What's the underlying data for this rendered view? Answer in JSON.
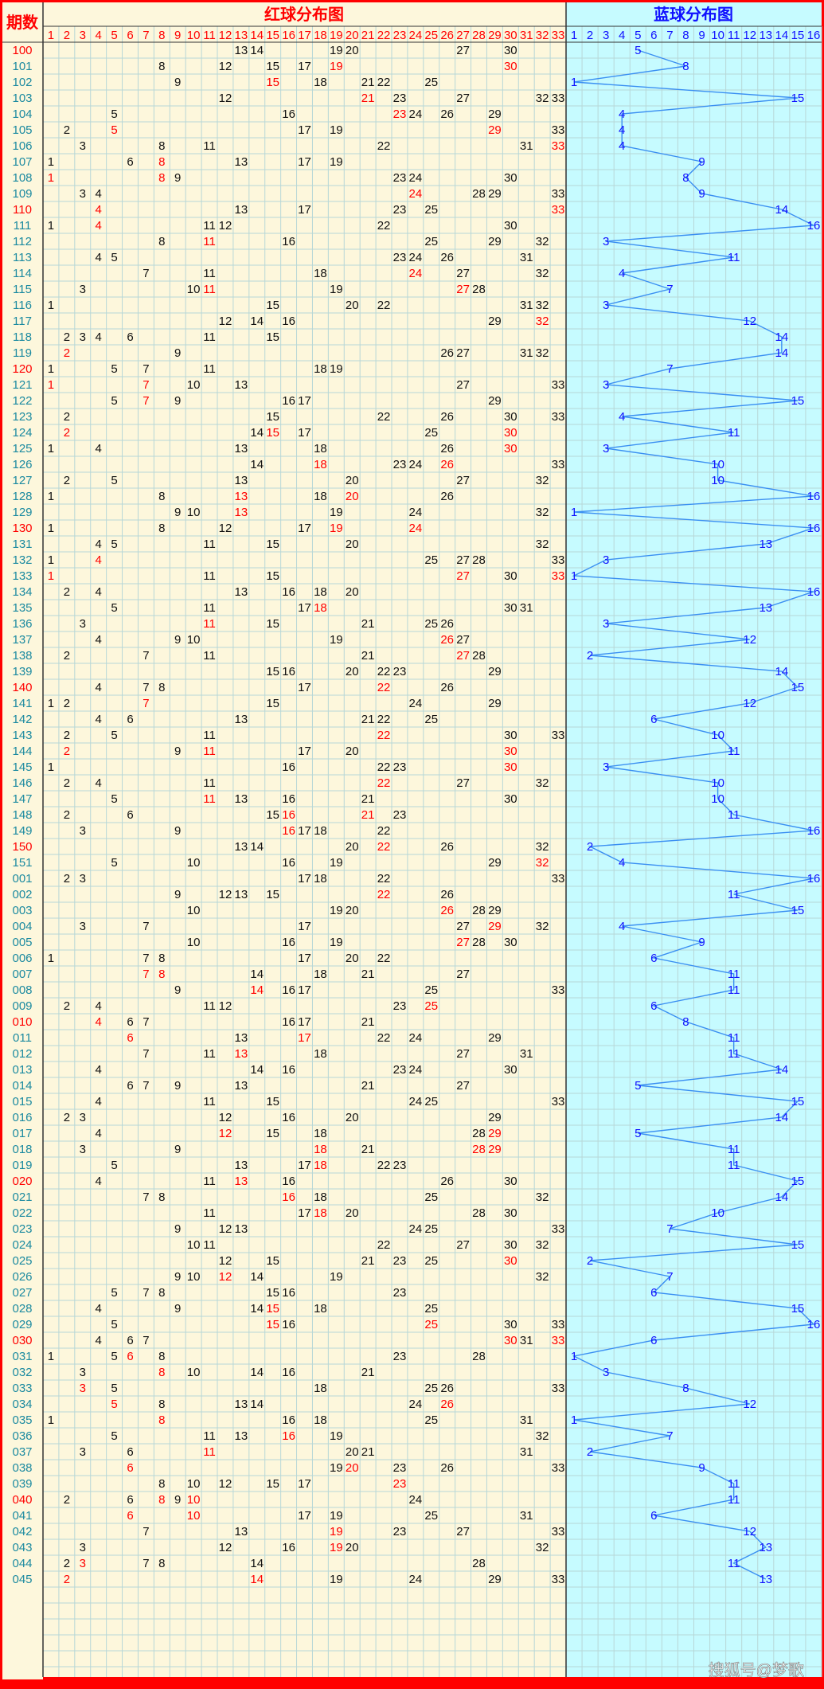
{
  "chart_data": {
    "type": "table",
    "header": {
      "period_label": "期数",
      "red_title": "红球分布图",
      "blue_title": "蓝球分布图"
    },
    "red_columns": [
      1,
      2,
      3,
      4,
      5,
      6,
      7,
      8,
      9,
      10,
      11,
      12,
      13,
      14,
      15,
      16,
      17,
      18,
      19,
      20,
      21,
      22,
      23,
      24,
      25,
      26,
      27,
      28,
      29,
      30,
      31,
      32,
      33
    ],
    "blue_columns": [
      1,
      2,
      3,
      4,
      5,
      6,
      7,
      8,
      9,
      10,
      11,
      12,
      13,
      14,
      15,
      16
    ],
    "draws": [
      {
        "period": "100",
        "red": [
          13,
          14,
          19,
          20,
          27,
          30
        ],
        "blue": 5
      },
      {
        "period": "101",
        "red": [
          8,
          12,
          15,
          17,
          19,
          30
        ],
        "blue": 8
      },
      {
        "period": "102",
        "red": [
          9,
          15,
          18,
          21,
          22,
          25
        ],
        "blue": 1
      },
      {
        "period": "103",
        "red": [
          12,
          21,
          23,
          27,
          32,
          33
        ],
        "blue": 15
      },
      {
        "period": "104",
        "red": [
          5,
          16,
          23,
          24,
          26,
          29
        ],
        "blue": 4
      },
      {
        "period": "105",
        "red": [
          2,
          5,
          17,
          19,
          29,
          33
        ],
        "blue": 4
      },
      {
        "period": "106",
        "red": [
          3,
          8,
          11,
          22,
          31,
          33
        ],
        "blue": 4
      },
      {
        "period": "107",
        "red": [
          1,
          6,
          8,
          13,
          17,
          19
        ],
        "blue": 9
      },
      {
        "period": "108",
        "red": [
          1,
          8,
          9,
          23,
          24,
          30
        ],
        "blue": 8
      },
      {
        "period": "109",
        "red": [
          3,
          4,
          24,
          28,
          29,
          33
        ],
        "blue": 9
      },
      {
        "period": "110",
        "red": [
          4,
          13,
          17,
          23,
          25,
          33
        ],
        "blue": 14
      },
      {
        "period": "111",
        "red": [
          1,
          4,
          11,
          12,
          22,
          30
        ],
        "blue": 16
      },
      {
        "period": "112",
        "red": [
          8,
          11,
          16,
          25,
          29,
          32
        ],
        "blue": 3
      },
      {
        "period": "113",
        "red": [
          4,
          5,
          23,
          24,
          26,
          31
        ],
        "blue": 11
      },
      {
        "period": "114",
        "red": [
          7,
          11,
          18,
          24,
          27,
          32
        ],
        "blue": 4
      },
      {
        "period": "115",
        "red": [
          3,
          10,
          11,
          19,
          27,
          28
        ],
        "blue": 7
      },
      {
        "period": "116",
        "red": [
          1,
          15,
          20,
          22,
          31,
          32
        ],
        "blue": 3
      },
      {
        "period": "117",
        "red": [
          12,
          14,
          16,
          29,
          32
        ],
        "blue": 12
      },
      {
        "period": "118",
        "red": [
          2,
          3,
          4,
          6,
          11,
          15
        ],
        "blue": 14
      },
      {
        "period": "119",
        "red": [
          2,
          9,
          26,
          27,
          31,
          32
        ],
        "blue": 14
      },
      {
        "period": "120",
        "red": [
          1,
          5,
          7,
          11,
          18,
          19
        ],
        "blue": 7
      },
      {
        "period": "121",
        "red": [
          1,
          7,
          10,
          13,
          27,
          33
        ],
        "blue": 3
      },
      {
        "period": "122",
        "red": [
          5,
          7,
          9,
          16,
          17,
          29
        ],
        "blue": 15
      },
      {
        "period": "123",
        "red": [
          2,
          15,
          22,
          26,
          30,
          33
        ],
        "blue": 4
      },
      {
        "period": "124",
        "red": [
          2,
          14,
          15,
          17,
          25,
          30
        ],
        "blue": 11
      },
      {
        "period": "125",
        "red": [
          1,
          4,
          13,
          18,
          26,
          30
        ],
        "blue": 3
      },
      {
        "period": "126",
        "red": [
          14,
          18,
          23,
          24,
          26,
          33
        ],
        "blue": 10
      },
      {
        "period": "127",
        "red": [
          2,
          5,
          13,
          20,
          27,
          32
        ],
        "blue": 10
      },
      {
        "period": "128",
        "red": [
          1,
          8,
          13,
          18,
          20,
          26
        ],
        "blue": 16
      },
      {
        "period": "129",
        "red": [
          9,
          10,
          13,
          19,
          24,
          32
        ],
        "blue": 1
      },
      {
        "period": "130",
        "red": [
          1,
          8,
          12,
          17,
          19,
          24
        ],
        "blue": 16
      },
      {
        "period": "131",
        "red": [
          4,
          5,
          11,
          15,
          20,
          32
        ],
        "blue": 13
      },
      {
        "period": "132",
        "red": [
          1,
          4,
          25,
          27,
          28,
          33
        ],
        "blue": 3
      },
      {
        "period": "133",
        "red": [
          1,
          11,
          15,
          27,
          30,
          33
        ],
        "blue": 1
      },
      {
        "period": "134",
        "red": [
          2,
          4,
          13,
          16,
          18,
          20
        ],
        "blue": 16
      },
      {
        "period": "135",
        "red": [
          5,
          11,
          17,
          18,
          30,
          31
        ],
        "blue": 13
      },
      {
        "period": "136",
        "red": [
          3,
          11,
          15,
          21,
          25,
          26
        ],
        "blue": 3
      },
      {
        "period": "137",
        "red": [
          4,
          9,
          10,
          19,
          26,
          27
        ],
        "blue": 12
      },
      {
        "period": "138",
        "red": [
          2,
          7,
          11,
          21,
          27,
          28
        ],
        "blue": 2
      },
      {
        "period": "139",
        "red": [
          15,
          16,
          20,
          22,
          23,
          29
        ],
        "blue": 14
      },
      {
        "period": "140",
        "red": [
          4,
          7,
          8,
          17,
          22,
          26
        ],
        "blue": 15
      },
      {
        "period": "141",
        "red": [
          1,
          2,
          7,
          15,
          24,
          29
        ],
        "blue": 12
      },
      {
        "period": "142",
        "red": [
          4,
          6,
          13,
          21,
          22,
          25
        ],
        "blue": 6
      },
      {
        "period": "143",
        "red": [
          2,
          5,
          11,
          22,
          30,
          33
        ],
        "blue": 10
      },
      {
        "period": "144",
        "red": [
          2,
          9,
          11,
          17,
          20,
          30
        ],
        "blue": 11
      },
      {
        "period": "145",
        "red": [
          1,
          16,
          22,
          23,
          30
        ],
        "blue": 3
      },
      {
        "period": "146",
        "red": [
          2,
          4,
          11,
          22,
          27,
          32
        ],
        "blue": 10
      },
      {
        "period": "147",
        "red": [
          5,
          11,
          13,
          16,
          21,
          30
        ],
        "blue": 10
      },
      {
        "period": "148",
        "red": [
          2,
          6,
          15,
          16,
          21,
          23
        ],
        "blue": 11
      },
      {
        "period": "149",
        "red": [
          3,
          9,
          16,
          17,
          18,
          22
        ],
        "blue": 16
      },
      {
        "period": "150",
        "red": [
          13,
          14,
          20,
          22,
          26,
          32
        ],
        "blue": 2
      },
      {
        "period": "151",
        "red": [
          5,
          10,
          16,
          19,
          29,
          32
        ],
        "blue": 4
      },
      {
        "period": "001",
        "red": [
          2,
          3,
          17,
          18,
          22,
          33
        ],
        "blue": 16
      },
      {
        "period": "002",
        "red": [
          9,
          12,
          13,
          15,
          22,
          26
        ],
        "blue": 11
      },
      {
        "period": "003",
        "red": [
          10,
          19,
          20,
          26,
          28,
          29
        ],
        "blue": 15
      },
      {
        "period": "004",
        "red": [
          3,
          7,
          17,
          27,
          29,
          32
        ],
        "blue": 4
      },
      {
        "period": "005",
        "red": [
          10,
          16,
          19,
          27,
          28,
          30
        ],
        "blue": 9
      },
      {
        "period": "006",
        "red": [
          1,
          7,
          8,
          17,
          20,
          22
        ],
        "blue": 6
      },
      {
        "period": "007",
        "red": [
          7,
          8,
          14,
          18,
          21,
          27
        ],
        "blue": 11
      },
      {
        "period": "008",
        "red": [
          9,
          14,
          16,
          17,
          25,
          33
        ],
        "blue": 11
      },
      {
        "period": "009",
        "red": [
          2,
          4,
          11,
          12,
          23,
          25
        ],
        "blue": 6
      },
      {
        "period": "010",
        "red": [
          4,
          6,
          7,
          16,
          17,
          21
        ],
        "blue": 8
      },
      {
        "period": "011",
        "red": [
          6,
          13,
          17,
          22,
          24,
          29
        ],
        "blue": 11
      },
      {
        "period": "012",
        "red": [
          7,
          11,
          13,
          18,
          27,
          31
        ],
        "blue": 11
      },
      {
        "period": "013",
        "red": [
          4,
          14,
          16,
          23,
          24,
          30
        ],
        "blue": 14
      },
      {
        "period": "014",
        "red": [
          6,
          7,
          9,
          13,
          21,
          27
        ],
        "blue": 5
      },
      {
        "period": "015",
        "red": [
          4,
          11,
          15,
          24,
          25,
          33
        ],
        "blue": 15
      },
      {
        "period": "016",
        "red": [
          2,
          3,
          12,
          16,
          20,
          29
        ],
        "blue": 14
      },
      {
        "period": "017",
        "red": [
          4,
          12,
          15,
          18,
          28,
          29
        ],
        "blue": 5
      },
      {
        "period": "018",
        "red": [
          3,
          9,
          18,
          21,
          28,
          29
        ],
        "blue": 11
      },
      {
        "period": "019",
        "red": [
          5,
          13,
          17,
          18,
          22,
          23
        ],
        "blue": 11
      },
      {
        "period": "020",
        "red": [
          4,
          11,
          13,
          16,
          26,
          30
        ],
        "blue": 15
      },
      {
        "period": "021",
        "red": [
          7,
          8,
          16,
          18,
          25,
          32
        ],
        "blue": 14
      },
      {
        "period": "022",
        "red": [
          11,
          17,
          18,
          20,
          28,
          30
        ],
        "blue": 10
      },
      {
        "period": "023",
        "red": [
          9,
          12,
          13,
          24,
          25,
          33
        ],
        "blue": 7
      },
      {
        "period": "024",
        "red": [
          10,
          11,
          22,
          27,
          30,
          32
        ],
        "blue": 15
      },
      {
        "period": "025",
        "red": [
          12,
          15,
          21,
          23,
          25,
          30
        ],
        "blue": 2
      },
      {
        "period": "026",
        "red": [
          9,
          10,
          12,
          14,
          19,
          32
        ],
        "blue": 7
      },
      {
        "period": "027",
        "red": [
          5,
          7,
          8,
          15,
          16,
          23
        ],
        "blue": 6
      },
      {
        "period": "028",
        "red": [
          4,
          9,
          14,
          15,
          18,
          25
        ],
        "blue": 15
      },
      {
        "period": "029",
        "red": [
          5,
          15,
          16,
          25,
          30,
          33
        ],
        "blue": 16
      },
      {
        "period": "030",
        "red": [
          4,
          6,
          7,
          30,
          31,
          33
        ],
        "blue": 6
      },
      {
        "period": "031",
        "red": [
          1,
          5,
          6,
          8,
          23,
          28
        ],
        "blue": 1
      },
      {
        "period": "032",
        "red": [
          3,
          8,
          10,
          14,
          16,
          21
        ],
        "blue": 3
      },
      {
        "period": "033",
        "red": [
          3,
          5,
          18,
          25,
          26,
          33
        ],
        "blue": 8
      },
      {
        "period": "034",
        "red": [
          5,
          8,
          13,
          14,
          24,
          26
        ],
        "blue": 12
      },
      {
        "period": "035",
        "red": [
          1,
          8,
          16,
          18,
          25,
          31
        ],
        "blue": 1
      },
      {
        "period": "036",
        "red": [
          5,
          11,
          13,
          16,
          19,
          32
        ],
        "blue": 7
      },
      {
        "period": "037",
        "red": [
          3,
          6,
          11,
          20,
          21,
          31
        ],
        "blue": 2
      },
      {
        "period": "038",
        "red": [
          6,
          19,
          20,
          23,
          26,
          33
        ],
        "blue": 9
      },
      {
        "period": "039",
        "red": [
          8,
          10,
          12,
          15,
          17,
          23
        ],
        "blue": 11
      },
      {
        "period": "040",
        "red": [
          2,
          6,
          8,
          9,
          10,
          24
        ],
        "blue": 11
      },
      {
        "period": "041",
        "red": [
          6,
          10,
          17,
          19,
          25,
          31
        ],
        "blue": 6
      },
      {
        "period": "042",
        "red": [
          7,
          13,
          19,
          23,
          27,
          33
        ],
        "blue": 12
      },
      {
        "period": "043",
        "red": [
          3,
          12,
          16,
          19,
          20,
          32
        ],
        "blue": 13
      },
      {
        "period": "044",
        "red": [
          2,
          3,
          7,
          8,
          14,
          28
        ],
        "blue": 11
      },
      {
        "period": "045",
        "red": [
          2,
          14,
          19,
          24,
          29,
          33
        ],
        "blue": 13
      }
    ]
  },
  "colors": {
    "red_bg": "#fdf7dc",
    "blue_bg": "#c6fbff",
    "grid": "#b7d7d7",
    "border": "#ff0000",
    "hot_red": "#ff0000",
    "normal_red": "#111111",
    "blue_text": "#1010ff",
    "blue_line": "#3a8ff2",
    "period_red": "#ff0000",
    "period_teal": "#1b8aa0"
  },
  "watermark": "搜狐号@梦歌"
}
